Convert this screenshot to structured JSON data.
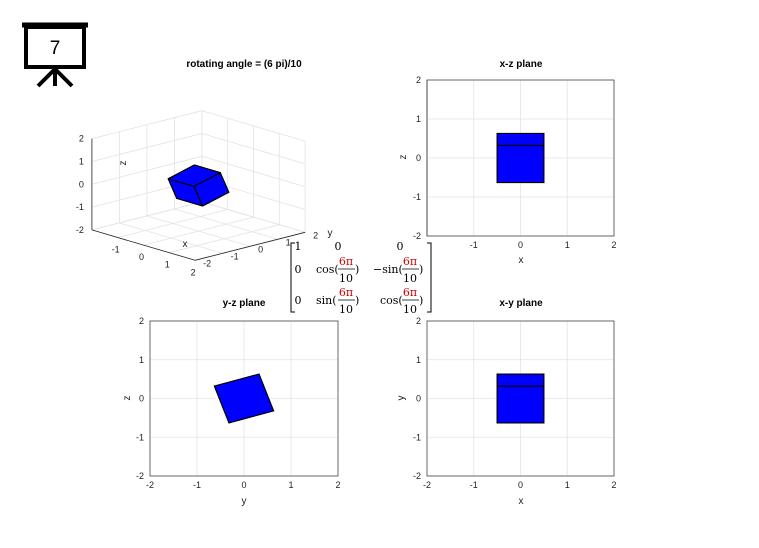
{
  "slide": {
    "number": "7"
  },
  "colors": {
    "face": "#0000ff",
    "edge": "#000000",
    "grid": "#e3e3e3",
    "axis": "#262626",
    "highlight": "#d00000"
  },
  "matrix": {
    "rows": [
      [
        "1",
        "0",
        "0"
      ],
      [
        "0",
        "cos(6π/10)",
        "−sin(6π/10)"
      ],
      [
        "0",
        "sin(6π/10)",
        "cos(6π/10)"
      ]
    ],
    "frac_numerator": "6π",
    "frac_denominator": "10",
    "cos_label": "cos(",
    "sin_label": "sin(",
    "neg_sin_label": "−sin(",
    "close_paren": ")"
  },
  "chart_data": [
    {
      "type": "3d-surface",
      "title": "rotating angle = (6 pi)/10",
      "xlabel": "x",
      "ylabel": "y",
      "zlabel": "z",
      "xlim": [
        -2,
        2
      ],
      "ylim": [
        -2,
        2
      ],
      "zlim": [
        -2,
        2
      ],
      "x_ticks": [
        "-1",
        "0",
        "1",
        "2"
      ],
      "y_ticks": [
        "-2",
        "-1",
        "0",
        "1",
        "2"
      ],
      "z_ticks": [
        "-2",
        "-1",
        "0",
        "1",
        "2"
      ],
      "grid": true,
      "rotation_angle": "6π/10",
      "cube_half_size": 0.5
    },
    {
      "type": "polygon",
      "title": "x-z plane",
      "xlabel": "x",
      "ylabel": "z",
      "xlim": [
        -2,
        2
      ],
      "ylim": [
        -2,
        2
      ],
      "x_ticks": [
        "-1",
        "0",
        "1",
        "2"
      ],
      "y_ticks": [
        "-2",
        "-1",
        "0",
        "1",
        "2"
      ],
      "grid": true,
      "polygons": [
        [
          [
            -0.5,
            0.63
          ],
          [
            0.5,
            0.63
          ],
          [
            0.5,
            -0.63
          ],
          [
            -0.5,
            -0.63
          ]
        ]
      ],
      "lines": [
        [
          [
            -0.5,
            0.32
          ],
          [
            0.5,
            0.32
          ]
        ]
      ]
    },
    {
      "type": "polygon",
      "title": "y-z plane",
      "xlabel": "y",
      "ylabel": "z",
      "xlim": [
        -2,
        2
      ],
      "ylim": [
        -2,
        2
      ],
      "x_ticks": [
        "-2",
        "-1",
        "0",
        "1",
        "2"
      ],
      "y_ticks": [
        "-2",
        "-1",
        "0",
        "1",
        "2"
      ],
      "grid": true,
      "polygons": [
        [
          [
            -0.63,
            0.32
          ],
          [
            0.32,
            0.63
          ],
          [
            0.63,
            -0.32
          ],
          [
            -0.32,
            -0.63
          ]
        ]
      ],
      "lines": []
    },
    {
      "type": "polygon",
      "title": "x-y plane",
      "xlabel": "x",
      "ylabel": "y",
      "xlim": [
        -2,
        2
      ],
      "ylim": [
        -2,
        2
      ],
      "x_ticks": [
        "-2",
        "-1",
        "0",
        "1",
        "2"
      ],
      "y_ticks": [
        "-2",
        "-1",
        "0",
        "1",
        "2"
      ],
      "grid": true,
      "polygons": [
        [
          [
            -0.5,
            0.63
          ],
          [
            0.5,
            0.63
          ],
          [
            0.5,
            -0.63
          ],
          [
            -0.5,
            -0.63
          ]
        ]
      ],
      "lines": [
        [
          [
            -0.5,
            0.32
          ],
          [
            0.5,
            0.32
          ]
        ]
      ]
    }
  ]
}
